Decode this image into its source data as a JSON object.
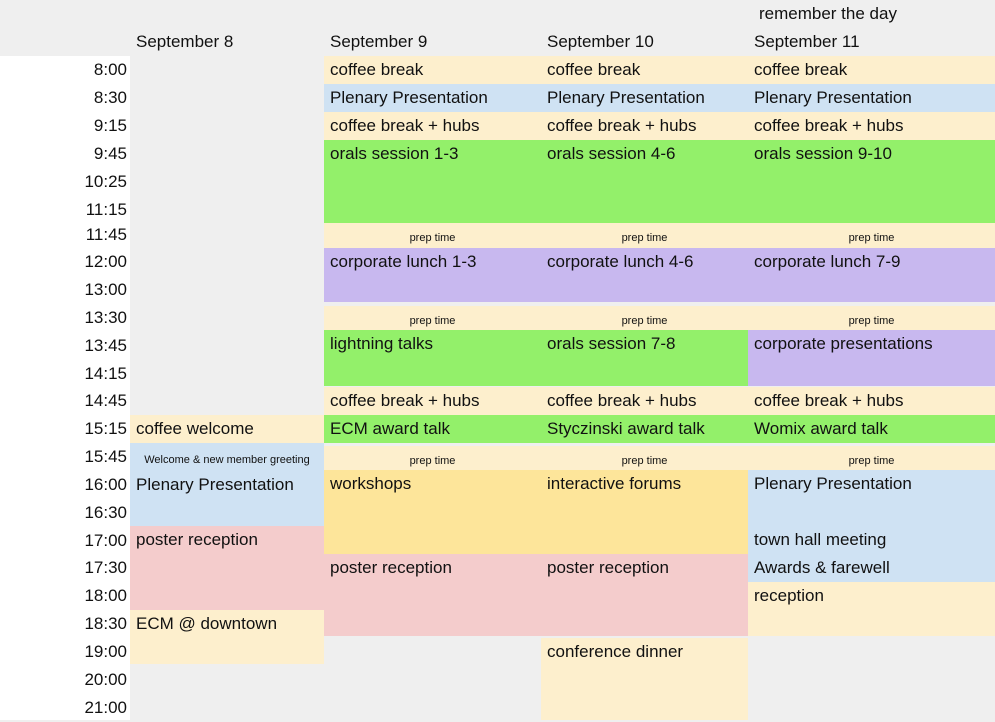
{
  "note": "remember the day",
  "days": [
    "September 8",
    "September 9",
    "September 10",
    "September 11"
  ],
  "times": [
    "8:00",
    "8:30",
    "9:15",
    "9:45",
    "10:25",
    "11:15",
    "11:45",
    "12:00",
    "13:00",
    "13:30",
    "13:45",
    "14:15",
    "14:45",
    "15:15",
    "15:45",
    "16:00",
    "16:30",
    "17:00",
    "17:30",
    "18:00",
    "18:30",
    "19:00",
    "20:00",
    "21:00"
  ],
  "colors": {
    "yellow": "#fdefcd",
    "blue": "#cfe2f3",
    "green": "#93f06a",
    "purple": "#c8b8ef",
    "pink": "#f4cccc",
    "orange": "#fde59a"
  },
  "events": {
    "sep8": {
      "coffee_welcome": "coffee welcome",
      "welcome_greeting": "Welcome & new member greeting",
      "plenary": "Plenary Presentation",
      "poster_reception": "poster reception",
      "ecm_downtown": "ECM @ downtown"
    },
    "sep9": {
      "coffee_break": "coffee break",
      "plenary": "Plenary Presentation",
      "coffee_hubs_1": "coffee break  + hubs",
      "orals": "orals session 1-3",
      "prep_1": "prep time",
      "lunch": "corporate lunch 1-3",
      "prep_2": "prep time",
      "lightning": "lightning talks",
      "coffee_hubs_2": "coffee break  + hubs",
      "award": "ECM award talk",
      "prep_3": "prep time",
      "workshops": "workshops",
      "poster_reception": "poster reception"
    },
    "sep10": {
      "coffee_break": "coffee break",
      "plenary": "Plenary Presentation",
      "coffee_hubs_1": "coffee break  + hubs",
      "orals": "orals session 4-6",
      "prep_1": "prep time",
      "lunch": "corporate lunch 4-6",
      "prep_2": "prep time",
      "orals_2": "orals session 7-8",
      "coffee_hubs_2": "coffee break  + hubs",
      "award": "Styczinski award talk",
      "prep_3": "prep time",
      "forums": "interactive forums",
      "poster_reception": "poster reception",
      "dinner": "conference dinner"
    },
    "sep11": {
      "coffee_break": "coffee break",
      "plenary": "Plenary Presentation",
      "coffee_hubs_1": "coffee break  + hubs",
      "orals": "orals session 9-10",
      "prep_1": "prep time",
      "lunch": "corporate lunch 7-9",
      "prep_2": "prep time",
      "corp_presentations": "corporate presentations",
      "coffee_hubs_2": "coffee break  + hubs",
      "award": "Womix award talk",
      "prep_3": "prep time",
      "plenary_2": "Plenary Presentation",
      "town_hall": "town hall meeting",
      "awards_farewell": "Awards & farewell",
      "reception": "reception"
    }
  }
}
